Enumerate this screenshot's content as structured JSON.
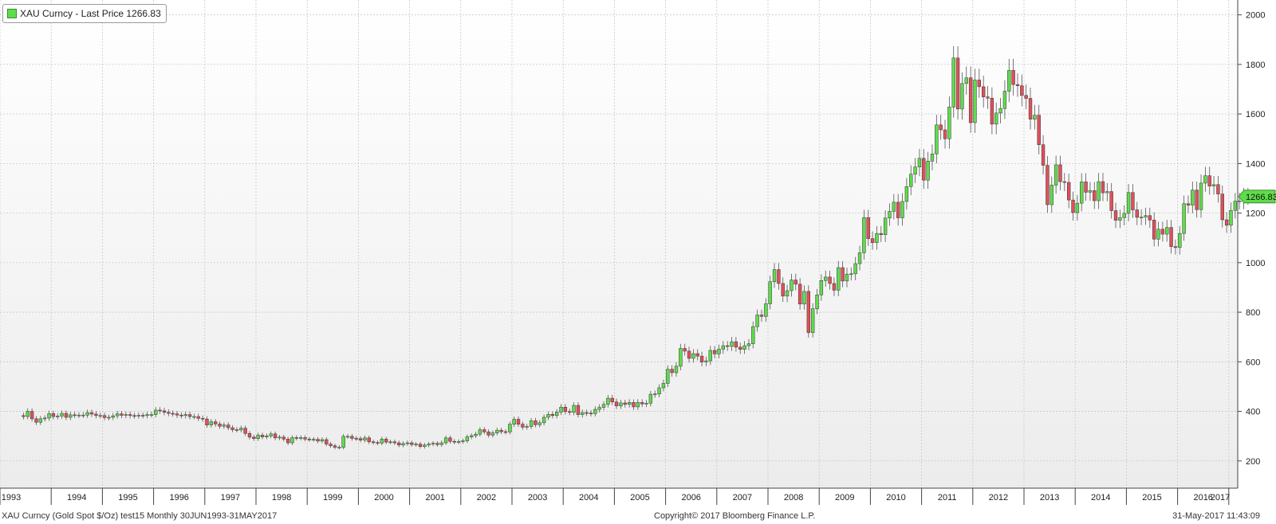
{
  "legend": {
    "label": "XAU Curncy - Last Price 1266.83",
    "color": "#5fdc4b"
  },
  "footer": {
    "left": "XAU Curncy (Gold Spot  $/Oz) test15  Monthly 30JUN1993-31MAY2017",
    "center": "Copyright© 2017 Bloomberg Finance L.P.",
    "right": "31-May-2017 11:43:09"
  },
  "colors": {
    "up": "#5fdc4b",
    "down": "#e0505a",
    "last_price_tag": "#5fdc4b"
  },
  "chart_data": {
    "type": "candlestick",
    "title": "",
    "xlabel": "",
    "ylabel": "",
    "frequency": "Monthly",
    "x_range": [
      "1993-06",
      "2017-05"
    ],
    "ylim": [
      90,
      2060
    ],
    "y_ticks": [
      200,
      400,
      600,
      800,
      1000,
      1200,
      1400,
      1600,
      1800,
      2000
    ],
    "x_ticks": [
      "1993",
      "1994",
      "1995",
      "1996",
      "1997",
      "1998",
      "1999",
      "2000",
      "2001",
      "2002",
      "2003",
      "2004",
      "2005",
      "2006",
      "2007",
      "2008",
      "2009",
      "2010",
      "2011",
      "2012",
      "2013",
      "2014",
      "2015",
      "2016",
      "2017"
    ],
    "grid": true,
    "legend_position": "top-left",
    "last_price": {
      "value": 1266.83,
      "label": "1266.83"
    },
    "month_end_close": [
      {
        "year": 1993,
        "values": [
          379,
          400,
          370,
          356,
          370,
          373,
          391
        ]
      },
      {
        "year": 1994,
        "values": [
          379,
          381,
          392,
          376,
          386,
          385,
          385,
          385,
          395,
          389,
          383,
          383
        ]
      },
      {
        "year": 1995,
        "values": [
          375,
          376,
          382,
          390,
          384,
          387,
          383,
          382,
          384,
          383,
          387,
          387
        ]
      },
      {
        "year": 1996,
        "values": [
          405,
          402,
          396,
          392,
          390,
          385,
          383,
          387,
          379,
          379,
          372,
          369
        ]
      },
      {
        "year": 1997,
        "values": [
          345,
          358,
          349,
          340,
          345,
          334,
          326,
          325,
          332,
          311,
          296,
          290
        ]
      },
      {
        "year": 1998,
        "values": [
          304,
          297,
          301,
          309,
          293,
          296,
          288,
          273,
          294,
          292,
          294,
          288
        ]
      },
      {
        "year": 1999,
        "values": [
          287,
          287,
          280,
          286,
          268,
          261,
          255,
          255,
          299,
          299,
          291,
          290
        ]
      },
      {
        "year": 2000,
        "values": [
          284,
          293,
          277,
          274,
          272,
          288,
          276,
          277,
          273,
          264,
          270,
          273
        ]
      },
      {
        "year": 2001,
        "values": [
          266,
          268,
          258,
          264,
          268,
          271,
          266,
          273,
          293,
          279,
          276,
          278
        ]
      },
      {
        "year": 2002,
        "values": [
          281,
          297,
          302,
          308,
          326,
          317,
          304,
          313,
          324,
          318,
          317,
          348
        ]
      },
      {
        "year": 2003,
        "values": [
          368,
          348,
          336,
          339,
          362,
          346,
          354,
          376,
          388,
          383,
          397,
          417
        ]
      },
      {
        "year": 2004,
        "values": [
          399,
          396,
          424,
          387,
          395,
          393,
          391,
          408,
          416,
          428,
          453,
          438
        ]
      },
      {
        "year": 2005,
        "values": [
          422,
          434,
          428,
          436,
          418,
          436,
          430,
          433,
          469,
          470,
          495,
          513
        ]
      },
      {
        "year": 2006,
        "values": [
          570,
          556,
          582,
          654,
          643,
          614,
          633,
          623,
          599,
          604,
          646,
          632
        ]
      },
      {
        "year": 2007,
        "values": [
          651,
          665,
          662,
          681,
          659,
          650,
          665,
          673,
          742,
          789,
          783,
          834
        ]
      },
      {
        "year": 2008,
        "values": [
          923,
          972,
          916,
          865,
          887,
          930,
          913,
          833,
          884,
          718,
          814,
          870
        ]
      },
      {
        "year": 2009,
        "values": [
          928,
          942,
          916,
          889,
          980,
          926,
          954,
          955,
          996,
          1040,
          1182,
          1097
        ]
      },
      {
        "year": 2010,
        "values": [
          1081,
          1118,
          1113,
          1180,
          1207,
          1244,
          1181,
          1247,
          1307,
          1357,
          1386,
          1421
        ]
      },
      {
        "year": 2011,
        "values": [
          1333,
          1410,
          1439,
          1556,
          1536,
          1500,
          1628,
          1826,
          1620,
          1723,
          1746,
          1565
        ]
      },
      {
        "year": 2012,
        "values": [
          1737,
          1710,
          1669,
          1664,
          1559,
          1604,
          1622,
          1692,
          1776,
          1719,
          1714,
          1675
        ]
      },
      {
        "year": 2013,
        "values": [
          1663,
          1579,
          1595,
          1476,
          1393,
          1234,
          1313,
          1395,
          1327,
          1324,
          1253,
          1202
        ]
      },
      {
        "year": 2014,
        "values": [
          1240,
          1326,
          1284,
          1291,
          1250,
          1327,
          1282,
          1287,
          1210,
          1171,
          1182,
          1199
        ]
      },
      {
        "year": 2015,
        "values": [
          1283,
          1213,
          1183,
          1184,
          1190,
          1172,
          1095,
          1135,
          1115,
          1142,
          1065,
          1061
        ]
      },
      {
        "year": 2016,
        "values": [
          1118,
          1238,
          1232,
          1293,
          1214,
          1321,
          1351,
          1309,
          1315,
          1277,
          1173,
          1151
        ]
      },
      {
        "year": 2017,
        "values": [
          1211,
          1248,
          1249,
          1268,
          1266.83
        ]
      }
    ]
  }
}
